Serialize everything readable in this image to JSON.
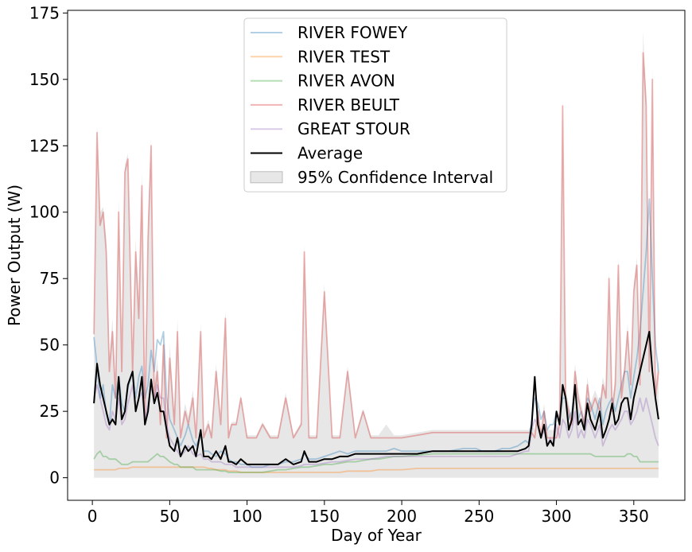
{
  "chart_data": {
    "type": "line",
    "title": "",
    "xlabel": "Day of Year",
    "ylabel": "Power Output (W)",
    "xlim": [
      -16,
      383
    ],
    "ylim": [
      -8.5,
      176
    ],
    "xticks": [
      0,
      50,
      100,
      150,
      200,
      250,
      300,
      350
    ],
    "yticks": [
      0,
      25,
      50,
      75,
      100,
      125,
      150,
      175
    ],
    "grid": false,
    "legend_position": "upper center",
    "x_knots": [
      1,
      3,
      5,
      7,
      9,
      11,
      13,
      15,
      17,
      19,
      21,
      23,
      26,
      28,
      30,
      32,
      34,
      36,
      38,
      40,
      42,
      44,
      46,
      48,
      50,
      53,
      55,
      57,
      60,
      62,
      65,
      67,
      70,
      72,
      75,
      77,
      80,
      83,
      86,
      88,
      90,
      93,
      96,
      100,
      103,
      106,
      110,
      115,
      120,
      125,
      130,
      135,
      137,
      140,
      145,
      150,
      155,
      160,
      165,
      170,
      175,
      180,
      185,
      190,
      195,
      200,
      210,
      220,
      230,
      240,
      248,
      252,
      260,
      265,
      270,
      275,
      280,
      282,
      284,
      286,
      288,
      290,
      292,
      294,
      296,
      298,
      300,
      302,
      304,
      306,
      308,
      310,
      312,
      314,
      316,
      318,
      320,
      322,
      325,
      328,
      330,
      332,
      334,
      336,
      338,
      340,
      342,
      344,
      346,
      348,
      350,
      352,
      354,
      356,
      358,
      360,
      362,
      364,
      366
    ],
    "series": [
      {
        "name": "RIVER FOWEY",
        "color": "#1f77b4",
        "values": [
          53,
          42,
          30,
          35,
          24,
          20,
          35,
          30,
          38,
          28,
          25,
          34,
          40,
          30,
          38,
          42,
          30,
          35,
          48,
          40,
          52,
          50,
          55,
          30,
          22,
          18,
          15,
          12,
          16,
          20,
          14,
          12,
          16,
          10,
          10,
          9,
          8,
          10,
          9,
          7,
          6,
          6,
          5,
          5,
          4,
          4,
          4,
          5,
          5,
          6,
          6,
          7,
          9,
          7,
          7,
          8,
          9,
          10,
          9,
          10,
          10,
          10,
          10,
          10,
          11,
          10,
          10,
          10,
          10,
          11,
          11,
          10,
          10,
          11,
          11,
          12,
          14,
          13,
          22,
          30,
          28,
          22,
          25,
          18,
          20,
          20,
          25,
          22,
          30,
          30,
          22,
          25,
          35,
          22,
          25,
          20,
          30,
          28,
          22,
          30,
          20,
          25,
          28,
          30,
          25,
          30,
          35,
          40,
          40,
          30,
          38,
          45,
          55,
          70,
          85,
          105,
          75,
          50,
          40
        ]
      },
      {
        "name": "RIVER TEST",
        "color": "#ff7f0e",
        "values": [
          3,
          3,
          3,
          3,
          3,
          3,
          3,
          3,
          3.5,
          3.5,
          3.5,
          3.5,
          4,
          4,
          4,
          4,
          4,
          4,
          4,
          4,
          4,
          4,
          4,
          4,
          4,
          4,
          4,
          4,
          4,
          4,
          4,
          4,
          4,
          4,
          3.5,
          3.5,
          3,
          3,
          3,
          2.5,
          2.5,
          2.5,
          2,
          2,
          2,
          2,
          2,
          2,
          2,
          2,
          2,
          2,
          2,
          2,
          2,
          2,
          2,
          2,
          2.5,
          2.5,
          2.5,
          2.5,
          3,
          3,
          3,
          3,
          3.5,
          3.5,
          3.5,
          3.5,
          3.5,
          3.5,
          3.5,
          3.5,
          3.5,
          3.5,
          3.5,
          3.5,
          3.5,
          3.5,
          3.5,
          3.5,
          3.5,
          3.5,
          3.5,
          3.5,
          3.5,
          3.5,
          3.5,
          3.5,
          3.5,
          3.5,
          3.5,
          3.5,
          3.5,
          3.5,
          3.5,
          3.5,
          3.5,
          3.5,
          3.5,
          3.5,
          3.5,
          3.5,
          3.5,
          3.5,
          3.5,
          3.5,
          3.5,
          3.5,
          3.5,
          3.5,
          3.5,
          3.5,
          3.5,
          3.5,
          3.5,
          3.5,
          3.5
        ]
      },
      {
        "name": "RIVER AVON",
        "color": "#2ca02c",
        "values": [
          7,
          9,
          10,
          8,
          8,
          7,
          7,
          7,
          6,
          5,
          5,
          5,
          6,
          6,
          6,
          6,
          6,
          6,
          7,
          8,
          9,
          8,
          8,
          7,
          6,
          5,
          5,
          4,
          4,
          4,
          4,
          3,
          3,
          3,
          3,
          3,
          3,
          2.5,
          2.5,
          2,
          2,
          2,
          2,
          2,
          2,
          2,
          2,
          2.5,
          3,
          3,
          3.5,
          4,
          4,
          4,
          4.5,
          5,
          5,
          5.5,
          6,
          6,
          6.5,
          7,
          7,
          7.5,
          8,
          8,
          8.5,
          9,
          9,
          9,
          9,
          9,
          9,
          9,
          9,
          9,
          9,
          9,
          9,
          9,
          9,
          9,
          9,
          9,
          9,
          9,
          9,
          9,
          9,
          9,
          9,
          9,
          9,
          9,
          9,
          9,
          9,
          9,
          8,
          8,
          8,
          8,
          8,
          8,
          8,
          8,
          8,
          8,
          9,
          9,
          8,
          8,
          6,
          6,
          6,
          6,
          6,
          6,
          6
        ]
      },
      {
        "name": "RIVER BEULT",
        "color": "#d62728",
        "values": [
          54,
          130,
          95,
          100,
          85,
          40,
          55,
          30,
          100,
          40,
          115,
          120,
          40,
          85,
          60,
          110,
          20,
          90,
          125,
          30,
          40,
          20,
          50,
          15,
          45,
          20,
          55,
          15,
          25,
          20,
          30,
          15,
          55,
          15,
          20,
          15,
          40,
          20,
          60,
          15,
          20,
          20,
          30,
          15,
          15,
          15,
          20,
          15,
          15,
          30,
          15,
          20,
          85,
          15,
          15,
          70,
          15,
          15,
          40,
          15,
          25,
          15,
          15,
          15,
          15,
          15,
          16,
          17,
          17,
          17,
          17,
          17,
          17,
          17,
          17,
          17,
          17,
          17,
          17,
          15,
          25,
          15,
          25,
          15,
          15,
          15,
          15,
          20,
          140,
          30,
          25,
          20,
          40,
          30,
          25,
          20,
          35,
          25,
          30,
          25,
          35,
          30,
          75,
          25,
          35,
          80,
          30,
          40,
          55,
          35,
          70,
          80,
          35,
          160,
          140,
          40,
          150,
          30,
          40
        ]
      },
      {
        "name": "GREAT STOUR",
        "color": "#9467bd",
        "values": [
          30,
          35,
          30,
          25,
          20,
          18,
          25,
          22,
          30,
          20,
          22,
          28,
          35,
          25,
          30,
          32,
          22,
          28,
          34,
          30,
          35,
          30,
          30,
          20,
          15,
          12,
          10,
          8,
          10,
          12,
          9,
          8,
          9,
          7,
          7,
          6,
          6,
          6,
          5,
          5,
          5,
          4,
          4,
          4,
          4,
          4,
          4,
          4,
          4,
          4,
          4,
          4.5,
          5,
          5,
          5,
          5.5,
          6,
          6,
          6.5,
          7,
          7,
          7,
          7.5,
          8,
          8,
          8,
          8,
          8,
          8,
          8,
          8,
          8,
          8,
          8,
          8,
          9,
          10,
          10,
          18,
          22,
          20,
          15,
          18,
          12,
          15,
          12,
          20,
          15,
          22,
          20,
          15,
          18,
          25,
          15,
          18,
          15,
          22,
          20,
          15,
          20,
          12,
          15,
          18,
          20,
          18,
          20,
          22,
          25,
          25,
          20,
          22,
          25,
          30,
          25,
          30,
          25,
          20,
          15,
          12
        ]
      },
      {
        "name": "Average",
        "color": "#000000",
        "values": [
          28,
          43,
          35,
          30,
          25,
          20,
          22,
          20,
          38,
          22,
          25,
          35,
          40,
          25,
          30,
          38,
          20,
          25,
          37,
          28,
          32,
          25,
          25,
          18,
          12,
          10,
          15,
          8,
          12,
          10,
          12,
          8,
          18,
          8,
          8,
          7,
          10,
          7,
          12,
          6,
          6,
          5,
          7,
          5,
          5,
          5,
          5,
          5,
          5,
          7,
          5,
          6,
          10,
          6,
          6,
          7,
          7,
          8,
          8,
          9,
          9,
          9,
          9,
          9,
          9,
          9,
          9,
          10,
          10,
          10,
          10,
          10,
          10,
          10,
          10,
          10,
          11,
          12,
          20,
          38,
          20,
          15,
          20,
          12,
          14,
          12,
          25,
          20,
          35,
          30,
          18,
          22,
          35,
          20,
          22,
          18,
          28,
          22,
          18,
          25,
          15,
          18,
          22,
          28,
          20,
          22,
          28,
          30,
          30,
          22,
          30,
          35,
          40,
          45,
          50,
          55,
          40,
          30,
          22
        ]
      }
    ],
    "ci": {
      "name": "95% Confidence Interval",
      "color": "#d3d3d3",
      "lower": [
        0,
        0,
        0,
        0,
        0,
        0,
        0,
        0,
        0,
        0,
        0,
        0,
        0,
        0,
        0,
        0,
        0,
        0,
        0,
        0,
        0,
        0,
        0,
        0,
        0,
        0,
        0,
        0,
        0,
        0,
        0,
        0,
        0,
        0,
        0,
        0,
        0,
        0,
        0,
        0,
        0,
        0,
        0,
        0,
        0,
        0,
        0,
        0,
        0,
        0,
        0,
        0,
        0,
        0,
        0,
        0,
        0,
        0,
        0,
        0,
        0,
        0,
        0,
        0,
        0,
        0,
        0,
        0,
        0,
        0,
        0,
        0,
        0,
        0,
        0,
        0,
        0,
        0,
        0,
        0,
        0,
        0,
        0,
        0,
        0,
        0,
        0,
        0,
        0,
        0,
        0,
        0,
        0,
        0,
        0,
        0,
        0,
        0,
        0,
        0,
        0,
        0,
        0,
        0,
        0,
        0,
        0,
        0,
        0,
        0,
        0,
        0,
        0,
        0,
        0,
        0,
        0,
        0,
        0
      ],
      "upper": [
        60,
        133,
        100,
        102,
        90,
        45,
        60,
        35,
        105,
        45,
        118,
        122,
        45,
        90,
        65,
        115,
        25,
        95,
        128,
        35,
        45,
        25,
        55,
        20,
        50,
        25,
        60,
        18,
        28,
        23,
        33,
        17,
        58,
        17,
        22,
        17,
        43,
        22,
        63,
        17,
        21,
        21,
        31,
        16,
        16,
        16,
        21,
        16,
        16,
        32,
        16,
        21,
        88,
        16,
        16,
        73,
        16,
        16,
        42,
        16,
        26,
        16,
        16,
        20,
        16,
        16,
        17,
        18,
        18,
        18,
        18,
        18,
        18,
        18,
        18,
        18,
        18,
        18,
        20,
        18,
        28,
        18,
        28,
        18,
        18,
        18,
        18,
        22,
        143,
        33,
        28,
        23,
        43,
        33,
        28,
        23,
        38,
        28,
        33,
        28,
        38,
        33,
        78,
        28,
        38,
        83,
        33,
        43,
        58,
        38,
        73,
        83,
        38,
        168,
        145,
        45,
        155,
        35,
        45
      ]
    }
  }
}
